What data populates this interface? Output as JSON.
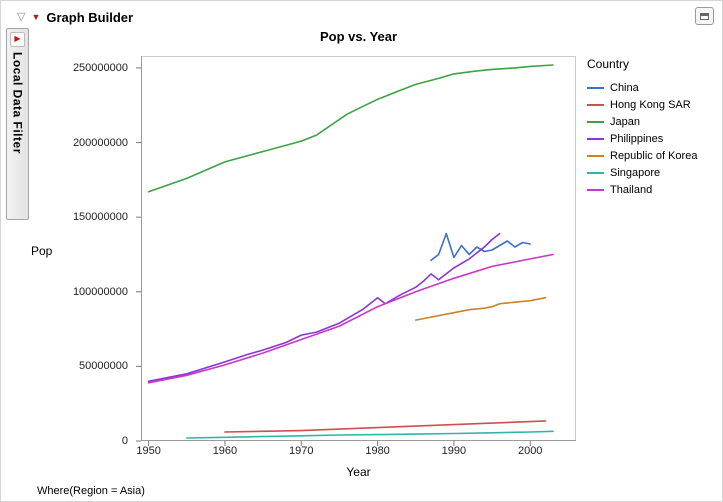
{
  "window": {
    "title": "Graph Builder"
  },
  "icons": {
    "disclosure_open": "▽",
    "red_triangle": "▼",
    "filter_red_triangle": "▶"
  },
  "sidebar": {
    "label": "Local Data Filter"
  },
  "footer": {
    "where_clause": "Where(Region = Asia)"
  },
  "chart_data": {
    "type": "line",
    "title": "Pop vs. Year",
    "xlabel": "Year",
    "ylabel": "Pop",
    "xlim": [
      1949,
      2006
    ],
    "ylim": [
      0,
      258000000
    ],
    "x_ticks": [
      1950,
      1960,
      1970,
      1980,
      1990,
      2000
    ],
    "y_ticks": [
      0,
      50000000,
      100000000,
      150000000,
      200000000,
      250000000
    ],
    "grid": false,
    "legend_title": "Country",
    "legend_position": "right",
    "series": [
      {
        "name": "China",
        "color": "#3d6ec9",
        "points": [
          [
            1987,
            121000000
          ],
          [
            1988,
            125000000
          ],
          [
            1989,
            139000000
          ],
          [
            1990,
            123000000
          ],
          [
            1991,
            131000000
          ],
          [
            1992,
            125000000
          ],
          [
            1993,
            130000000
          ],
          [
            1994,
            127000000
          ],
          [
            1995,
            128000000
          ],
          [
            1996,
            131000000
          ],
          [
            1997,
            134000000
          ],
          [
            1998,
            130000000
          ],
          [
            1999,
            133000000
          ],
          [
            2000,
            132000000
          ]
        ]
      },
      {
        "name": "Hong Kong SAR",
        "color": "#ce4f4f",
        "points": [
          [
            1960,
            6000000
          ],
          [
            1965,
            6500000
          ],
          [
            1970,
            7000000
          ],
          [
            1975,
            8000000
          ],
          [
            1980,
            9000000
          ],
          [
            1985,
            10000000
          ],
          [
            1990,
            11000000
          ],
          [
            1995,
            12000000
          ],
          [
            2000,
            13000000
          ],
          [
            2002,
            13500000
          ]
        ]
      },
      {
        "name": "Japan",
        "color": "#3da244",
        "points": [
          [
            1950,
            167000000
          ],
          [
            1955,
            176000000
          ],
          [
            1960,
            187000000
          ],
          [
            1965,
            194000000
          ],
          [
            1970,
            201000000
          ],
          [
            1972,
            205000000
          ],
          [
            1974,
            212000000
          ],
          [
            1976,
            219000000
          ],
          [
            1978,
            224000000
          ],
          [
            1980,
            229000000
          ],
          [
            1983,
            235000000
          ],
          [
            1985,
            239000000
          ],
          [
            1988,
            243000000
          ],
          [
            1990,
            246000000
          ],
          [
            1993,
            248000000
          ],
          [
            1995,
            249000000
          ],
          [
            1998,
            250000000
          ],
          [
            2000,
            251000000
          ],
          [
            2003,
            252000000
          ]
        ]
      },
      {
        "name": "Philippines",
        "color": "#8a35d6",
        "points": [
          [
            1950,
            40000000
          ],
          [
            1955,
            45000000
          ],
          [
            1960,
            53000000
          ],
          [
            1963,
            58000000
          ],
          [
            1965,
            61000000
          ],
          [
            1968,
            66000000
          ],
          [
            1970,
            71000000
          ],
          [
            1972,
            73000000
          ],
          [
            1975,
            79000000
          ],
          [
            1978,
            88000000
          ],
          [
            1980,
            96000000
          ],
          [
            1981,
            92000000
          ],
          [
            1983,
            98000000
          ],
          [
            1985,
            103000000
          ],
          [
            1986,
            107000000
          ],
          [
            1987,
            112000000
          ],
          [
            1988,
            108000000
          ],
          [
            1990,
            116000000
          ],
          [
            1992,
            122000000
          ],
          [
            1994,
            130000000
          ],
          [
            1995,
            135000000
          ],
          [
            1996,
            139000000
          ]
        ]
      },
      {
        "name": "Republic of Korea",
        "color": "#c98428",
        "points": [
          [
            1985,
            81000000
          ],
          [
            1987,
            83000000
          ],
          [
            1990,
            86000000
          ],
          [
            1992,
            88000000
          ],
          [
            1994,
            89000000
          ],
          [
            1995,
            90000000
          ],
          [
            1996,
            92000000
          ],
          [
            1998,
            93000000
          ],
          [
            2000,
            94000000
          ],
          [
            2002,
            96000000
          ]
        ]
      },
      {
        "name": "Singapore",
        "color": "#2fb5a9",
        "points": [
          [
            1955,
            2000000
          ],
          [
            1960,
            2500000
          ],
          [
            1965,
            3000000
          ],
          [
            1970,
            3500000
          ],
          [
            1975,
            4000000
          ],
          [
            1980,
            4300000
          ],
          [
            1985,
            4600000
          ],
          [
            1990,
            5000000
          ],
          [
            1995,
            5500000
          ],
          [
            2000,
            6000000
          ],
          [
            2003,
            6500000
          ]
        ]
      },
      {
        "name": "Thailand",
        "color": "#c837c8",
        "points": [
          [
            1950,
            39000000
          ],
          [
            1955,
            44000000
          ],
          [
            1960,
            51000000
          ],
          [
            1965,
            59000000
          ],
          [
            1970,
            68000000
          ],
          [
            1975,
            77000000
          ],
          [
            1980,
            90000000
          ],
          [
            1985,
            100000000
          ],
          [
            1990,
            109000000
          ],
          [
            1995,
            117000000
          ],
          [
            2000,
            122000000
          ],
          [
            2003,
            125000000
          ]
        ]
      }
    ]
  }
}
